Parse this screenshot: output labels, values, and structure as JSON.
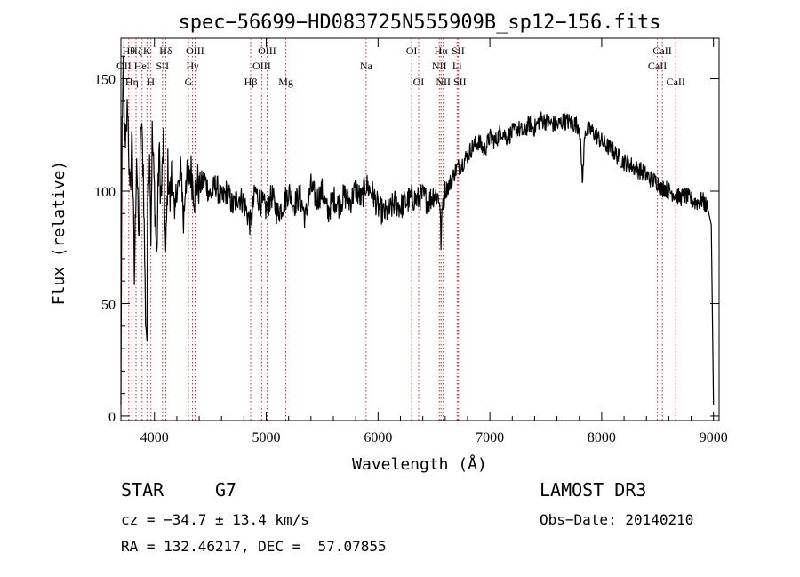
{
  "chart_data": {
    "type": "line",
    "title": "spec−56699−HD083725N555909B_sp12−156.fits",
    "xlabel": "Wavelength (Å)",
    "ylabel": "Flux (relative)",
    "xlim": [
      3700,
      9050
    ],
    "ylim": [
      -2,
      168
    ],
    "x_ticks": [
      4000,
      5000,
      6000,
      7000,
      8000,
      9000
    ],
    "y_ticks": [
      0,
      50,
      100,
      150
    ],
    "series": [
      {
        "name": "flux",
        "x": [
          3700,
          3710,
          3720,
          3740,
          3760,
          3780,
          3800,
          3820,
          3840,
          3860,
          3880,
          3900,
          3920,
          3933,
          3940,
          3960,
          3968,
          3980,
          4000,
          4020,
          4040,
          4060,
          4080,
          4101,
          4120,
          4140,
          4160,
          4180,
          4200,
          4220,
          4240,
          4260,
          4280,
          4300,
          4320,
          4340,
          4360,
          4380,
          4400,
          4450,
          4500,
          4550,
          4600,
          4650,
          4700,
          4750,
          4800,
          4861,
          4900,
          4950,
          5000,
          5050,
          5100,
          5150,
          5200,
          5250,
          5300,
          5350,
          5400,
          5450,
          5500,
          5550,
          5600,
          5650,
          5700,
          5750,
          5800,
          5850,
          5890,
          5950,
          6000,
          6050,
          6100,
          6150,
          6200,
          6250,
          6300,
          6350,
          6400,
          6450,
          6500,
          6550,
          6563,
          6580,
          6600,
          6650,
          6700,
          6750,
          6800,
          6850,
          6900,
          6950,
          7000,
          7050,
          7100,
          7150,
          7200,
          7250,
          7300,
          7350,
          7400,
          7450,
          7500,
          7550,
          7600,
          7650,
          7700,
          7750,
          7800,
          7830,
          7850,
          7900,
          7950,
          8000,
          8050,
          8100,
          8150,
          8200,
          8250,
          8300,
          8350,
          8400,
          8450,
          8500,
          8542,
          8550,
          8600,
          8650,
          8700,
          8750,
          8800,
          8850,
          8900,
          8950,
          8980,
          9000
        ],
        "values": [
          5,
          130,
          150,
          115,
          140,
          95,
          128,
          60,
          118,
          75,
          132,
          110,
          45,
          35,
          105,
          115,
          80,
          125,
          100,
          70,
          118,
          95,
          122,
          70,
          110,
          95,
          115,
          82,
          105,
          100,
          112,
          85,
          108,
          102,
          110,
          105,
          98,
          104,
          102,
          105,
          98,
          103,
          96,
          100,
          93,
          98,
          95,
          85,
          100,
          95,
          92,
          98,
          90,
          94,
          100,
          94,
          98,
          88,
          102,
          96,
          100,
          90,
          97,
          94,
          98,
          95,
          101,
          96,
          103,
          99,
          93,
          90,
          91,
          95,
          93,
          95,
          97,
          96,
          98,
          95,
          99,
          97,
          78,
          96,
          100,
          104,
          110,
          112,
          116,
          120,
          122,
          118,
          124,
          122,
          127,
          124,
          126,
          128,
          126,
          130,
          128,
          132,
          131,
          130,
          129,
          131,
          131,
          130,
          129,
          104,
          127,
          127,
          125,
          122,
          120,
          118,
          115,
          113,
          112,
          110,
          109,
          107,
          105,
          104,
          100,
          102,
          100,
          99,
          97,
          98,
          96,
          95,
          96,
          92,
          85,
          5
        ]
      }
    ],
    "line_markers": [
      {
        "wl": 3727,
        "label": "OII",
        "row": 2
      },
      {
        "wl": 3770,
        "label": "Hθ",
        "row": 1
      },
      {
        "wl": 3798,
        "label": "Hη",
        "row": 3
      },
      {
        "wl": 3835,
        "label": "Hζ",
        "row": 1
      },
      {
        "wl": 3889,
        "label": "HeI",
        "row": 2
      },
      {
        "wl": 3933,
        "label": "K",
        "row": 1
      },
      {
        "wl": 3968,
        "label": "H",
        "row": 3
      },
      {
        "wl": 4072,
        "label": "SII",
        "row": 2
      },
      {
        "wl": 4101,
        "label": "Hδ",
        "row": 1
      },
      {
        "wl": 4304,
        "label": "G",
        "row": 3
      },
      {
        "wl": 4340,
        "label": "Hγ",
        "row": 2
      },
      {
        "wl": 4363,
        "label": "OIII",
        "row": 1
      },
      {
        "wl": 4861,
        "label": "Hβ",
        "row": 3
      },
      {
        "wl": 4959,
        "label": "OIII",
        "row": 2
      },
      {
        "wl": 5007,
        "label": "OIII",
        "row": 1
      },
      {
        "wl": 5175,
        "label": "Mg",
        "row": 3
      },
      {
        "wl": 5893,
        "label": "Na",
        "row": 2
      },
      {
        "wl": 6300,
        "label": "OI",
        "row": 1
      },
      {
        "wl": 6363,
        "label": "OI",
        "row": 3
      },
      {
        "wl": 6548,
        "label": "NII",
        "row": 2
      },
      {
        "wl": 6563,
        "label": "Hα",
        "row": 1
      },
      {
        "wl": 6583,
        "label": "NII",
        "row": 3
      },
      {
        "wl": 6707,
        "label": "Li",
        "row": 2
      },
      {
        "wl": 6716,
        "label": "SII",
        "row": 1
      },
      {
        "wl": 6731,
        "label": "SII",
        "row": 3
      },
      {
        "wl": 8498,
        "label": "CaII",
        "row": 2
      },
      {
        "wl": 8542,
        "label": "CaII",
        "row": 1
      },
      {
        "wl": 8662,
        "label": "CaII",
        "row": 3
      }
    ]
  },
  "info": {
    "class": "STAR",
    "subclass": "G7",
    "survey": "LAMOST DR3",
    "cz": "cz = −34.7 ± 13.4 km/s",
    "obs_date": "Obs−Date: 20140210",
    "coords": "RA = 132.46217, DEC =  57.07855"
  }
}
